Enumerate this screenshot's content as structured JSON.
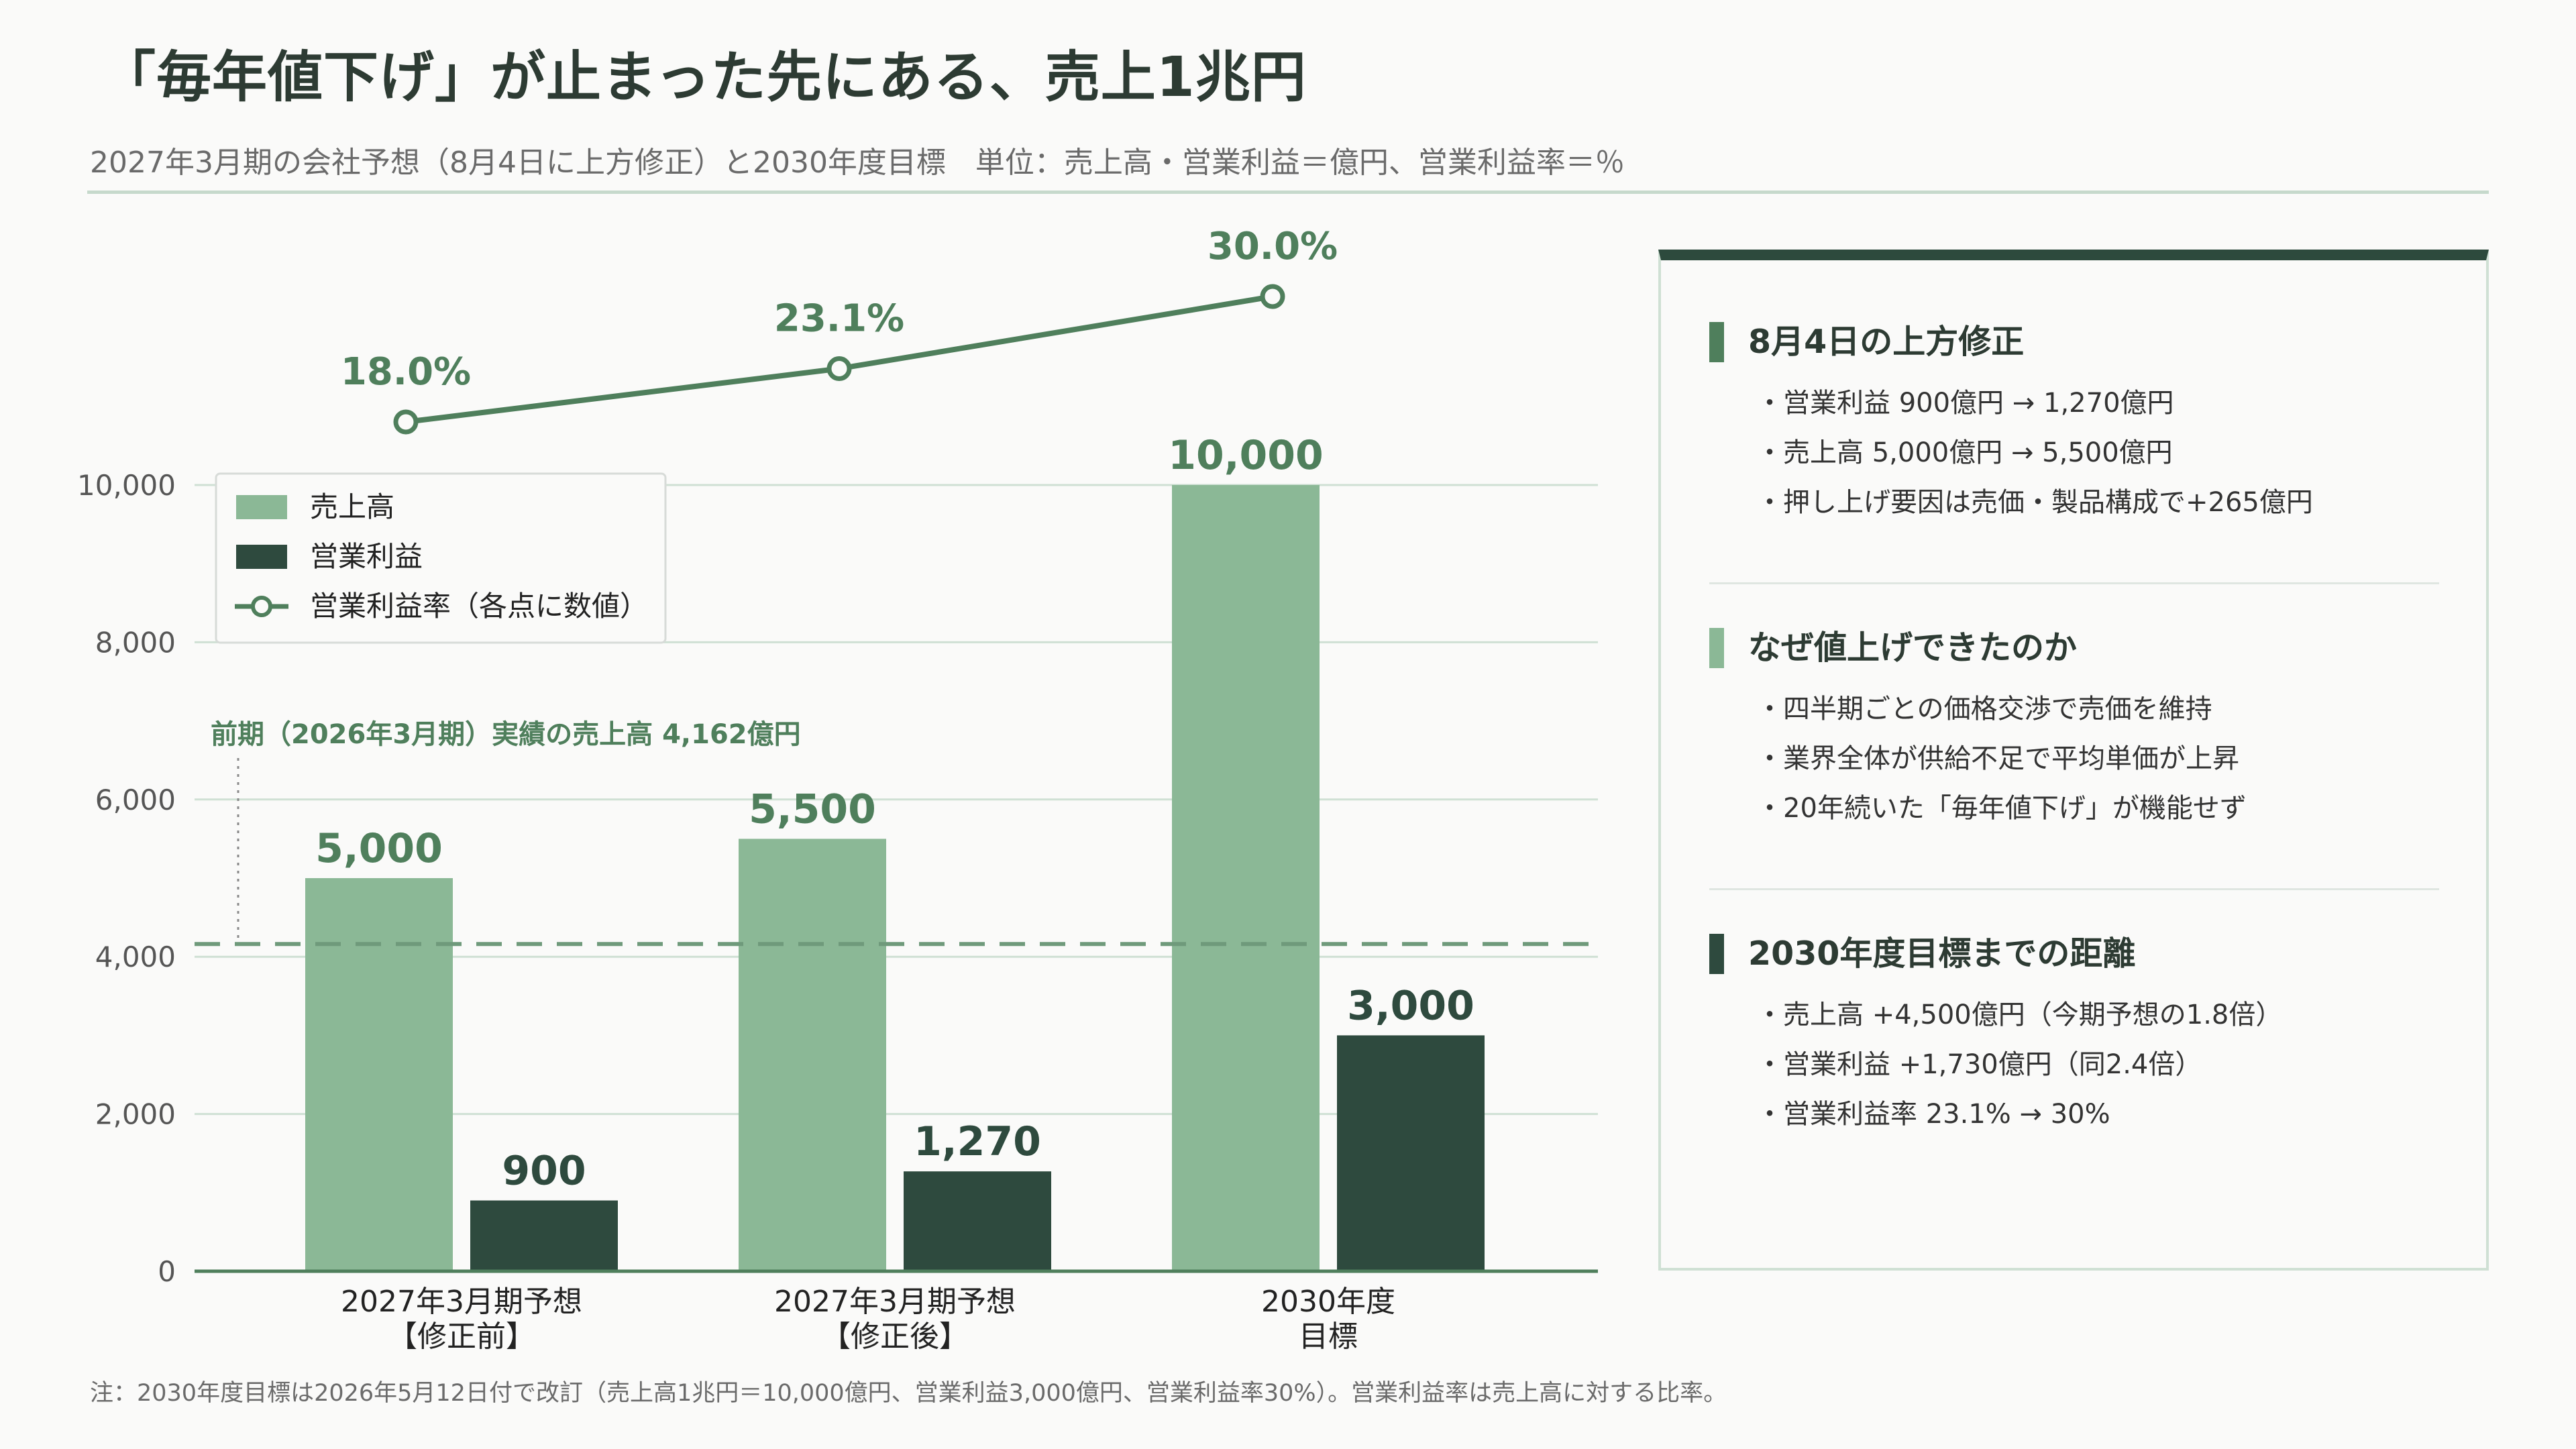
{
  "title": "「毎年値下げ」が止まった先にある、売上1兆円",
  "subtitle": "2027年3月期の会社予想（8月4日に上方修正）と2030年度目標　単位：売上高・営業利益＝億円、営業利益率＝％",
  "footnote": "注：2030年度目標は2026年5月12日付で改訂（売上高1兆円＝10,000億円、営業利益3,000億円、営業利益率30%）。営業利益率は売上高に対する比率。",
  "colors": {
    "sales": "#8bb896",
    "profit": "#2e4a3e",
    "margin": "#4f7f5c",
    "reference": "#6f9a7b",
    "grid": "#cfe0d4",
    "title": "#2d3b33"
  },
  "chart_data": {
    "type": "bar",
    "categories": [
      [
        "2027年3月期予想",
        "【修正前】"
      ],
      [
        "2027年3月期予想",
        "【修正後】"
      ],
      [
        "2030年度",
        "目標"
      ]
    ],
    "series": [
      {
        "name": "売上高",
        "type": "bar",
        "values": [
          5000,
          5500,
          10000
        ],
        "labels": [
          "5,000",
          "5,500",
          "10,000"
        ]
      },
      {
        "name": "営業利益",
        "type": "bar",
        "values": [
          900,
          1270,
          3000
        ],
        "labels": [
          "900",
          "1,270",
          "3,000"
        ]
      },
      {
        "name": "営業利益率（各点に数値）",
        "type": "line",
        "values": [
          18.0,
          23.1,
          30.0
        ],
        "labels": [
          "18.0%",
          "23.1%",
          "30.0%"
        ]
      }
    ],
    "ylim": [
      0,
      10000
    ],
    "yticks": [
      0,
      2000,
      4000,
      6000,
      8000,
      10000
    ],
    "ytick_labels": [
      "0",
      "2,000",
      "4,000",
      "6,000",
      "8,000",
      "10,000"
    ],
    "reference_line": {
      "value": 4162,
      "label": "前期（2026年3月期）実績の売上高 4,162億円"
    },
    "grid": true,
    "legend": "top-left"
  },
  "panel": {
    "sections": [
      {
        "heading": "8月4日の上方修正",
        "bar_color": "#4f7f5c",
        "items": [
          "・営業利益 900億円 → 1,270億円",
          "・売上高 5,000億円 → 5,500億円",
          "・押し上げ要因は売価・製品構成で+265億円"
        ]
      },
      {
        "heading": "なぜ値上げできたのか",
        "bar_color": "#8bb896",
        "items": [
          "・四半期ごとの価格交渉で売価を維持",
          "・業界全体が供給不足で平均単価が上昇",
          "・20年続いた「毎年値下げ」が機能せず"
        ]
      },
      {
        "heading": "2030年度目標までの距離",
        "bar_color": "#2e4a3e",
        "items": [
          "・売上高 +4,500億円（今期予想の1.8倍）",
          "・営業利益 +1,730億円（同2.4倍）",
          "・営業利益率 23.1% → 30%"
        ]
      }
    ]
  }
}
